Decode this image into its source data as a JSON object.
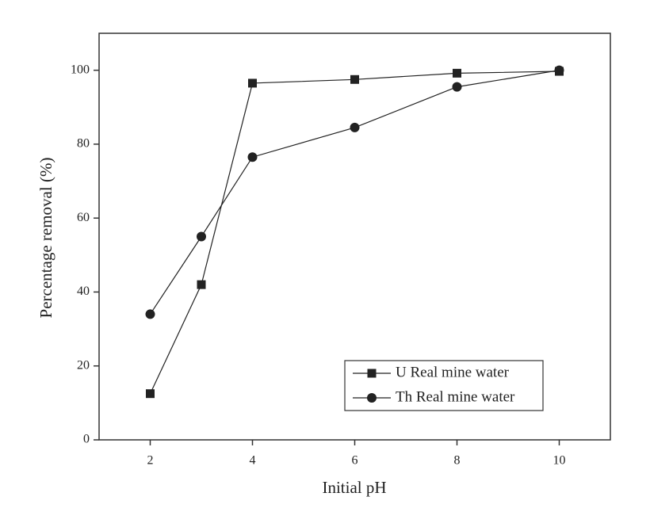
{
  "chart_data": {
    "type": "line",
    "x_label": "Initial pH",
    "y_label": "Percentage removal (%)",
    "x": [
      2,
      3,
      4,
      6,
      8,
      10
    ],
    "series": [
      {
        "name": "U Real mine water",
        "color": "#222222",
        "marker": "square",
        "values": [
          12.5,
          42,
          96.5,
          97.5,
          99.2,
          99.7
        ]
      },
      {
        "name": "Th Real mine water",
        "color": "#222222",
        "marker": "circle",
        "values": [
          34,
          55,
          76.5,
          84.5,
          95.5,
          100
        ]
      }
    ],
    "xlim": [
      1,
      11
    ],
    "xticks": [
      2,
      4,
      6,
      8,
      10
    ],
    "ylim": [
      0,
      110
    ],
    "yticks": [
      0,
      20,
      40,
      60,
      80,
      100
    ],
    "grid": false,
    "legend": "lower right"
  }
}
